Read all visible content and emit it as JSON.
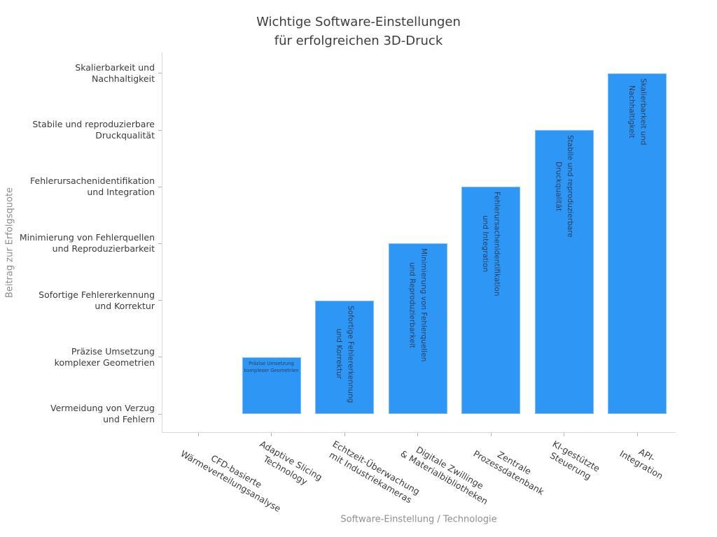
{
  "title": "Wichtige Software-Einstellungen\nfür erfolgreichen 3D-Druck",
  "chart_data": {
    "type": "bar",
    "title": "Wichtige Software-Einstellungen für erfolgreichen 3D-Druck",
    "xlabel": "Software-Einstellung / Technologie",
    "ylabel": "Beitrag zur Erfolgsquote",
    "categories": [
      "CFD-basierte Wärmeverteilungsanalyse",
      "Adaptive Slicing Technology",
      "Echtzeit-Überwachung mit Industriekameras",
      "Digitale Zwillinge & Materialbibliotheken",
      "Zentrale Prozessdatenbank",
      "KI-gestützte Steuerung",
      "API-Integration"
    ],
    "x_tick_labels": [
      "CFD-basierte\nWärmeverteilungsanalyse",
      "Adaptive Slicing\nTechnology",
      "Echtzeit-Überwachung\nmit Industriekameras",
      "Digitale Zwillinge\n& Materialbibliotheken",
      "Zentrale\nProzessdatenbank",
      "KI-gestützte\nSteuerung",
      "API-Integration"
    ],
    "values": [
      0,
      1,
      2,
      3,
      4,
      5,
      6
    ],
    "value_labels": [
      "Vermeidung von Verzug und Fehlern",
      "Präzise Umsetzung komplexer Geometrien",
      "Sofortige Fehlererkennung und Korrektur",
      "Minimierung von Fehlerquellen und Reproduzierbarkeit",
      "Fehlerursachenidentifikation und Integration",
      "Stabile und reproduzierbare Druckqualität",
      "Skalierbarkeit und Nachhaltigkeit"
    ],
    "bar_labels": [
      "",
      "Präzise Umsetzung\nkomplexer Geometrien",
      "Sofortige Fehlererkennung\nund Korrektur",
      "Minimierung von Fehlerquellen\nund Reproduzierbarkeit",
      "Fehlerursachenidentifikation\nund Integration",
      "Stabile und reproduzierbare\nDruckqualität",
      "Skalierbarkeit und\nNachhaltigkeit"
    ],
    "y_tick_labels": [
      "Vermeidung von Verzug\nund Fehlern",
      "Präzise Umsetzung\nkomplexer Geometrien",
      "Sofortige Fehlererkennung\nund Korrektur",
      "Minimierung von Fehlerquellen\nund Reproduzierbarkeit",
      "Fehlerursachenidentifikation\nund Integration",
      "Stabile und reproduzierbare\nDruckqualität",
      "Skalierbarkeit und\nNachhaltigkeit"
    ],
    "ylim": [
      -0.32,
      6.35
    ],
    "grid": false,
    "legend": "none",
    "colors": {
      "bar_fill": "#2E96F5",
      "bar_edge": "#7fbdf6",
      "bar_label_text": "#2a3f5f",
      "tick_label_text": "#3b3b3b",
      "axis_title_text": "#8e8e8e",
      "title_text": "#3d3d3d",
      "spine": "#d9d9d9"
    }
  }
}
